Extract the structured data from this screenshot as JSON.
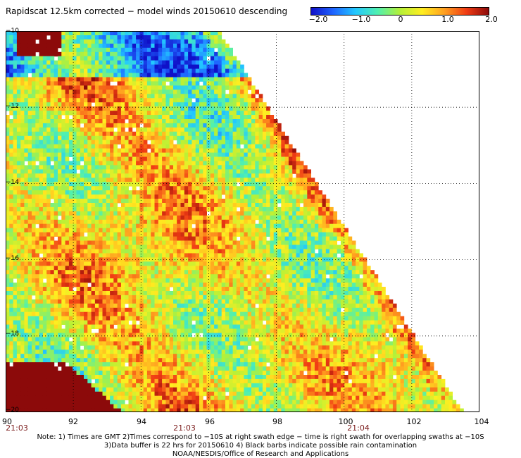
{
  "title": "Rapidscat 12.5km corrected − model winds 20150610 descending",
  "colorbar": {
    "ticks": [
      "−2.0",
      "−1.0",
      "0",
      "1.0",
      "2.0"
    ],
    "tick_values": [
      -2.0,
      -1.0,
      0,
      1.0,
      2.0
    ],
    "colors": [
      "#1010c8",
      "#1e64ff",
      "#22c8ff",
      "#50f0b0",
      "#b4f038",
      "#ffee20",
      "#ffa020",
      "#f03c14",
      "#8c0a0a"
    ]
  },
  "map": {
    "lon_range": [
      90,
      104
    ],
    "lat_range": [
      -20,
      -10
    ],
    "lon_ticks": [
      "90",
      "92",
      "94",
      "96",
      "98",
      "100",
      "102",
      "104"
    ],
    "lat_ticks": [
      "−10",
      "−12",
      "−14",
      "−16",
      "−18",
      "−20"
    ],
    "swath_edge": [
      [
        96.3,
        -10
      ],
      [
        103.5,
        -20
      ]
    ]
  },
  "times": [
    "21:03",
    "21:03",
    "21:04"
  ],
  "time_lons": [
    90.2,
    96.0,
    100.2
  ],
  "notes": [
    "Note: 1) Times are GMT 2)Times correspond to −10S at right swath edge − time is right swath for overlapping swaths at −10S",
    "3)Data buffer is 22 hrs for 20150610 4) Black barbs indicate possible rain contamination",
    "NOAA/NESDIS/Office of Research and Applications"
  ]
}
